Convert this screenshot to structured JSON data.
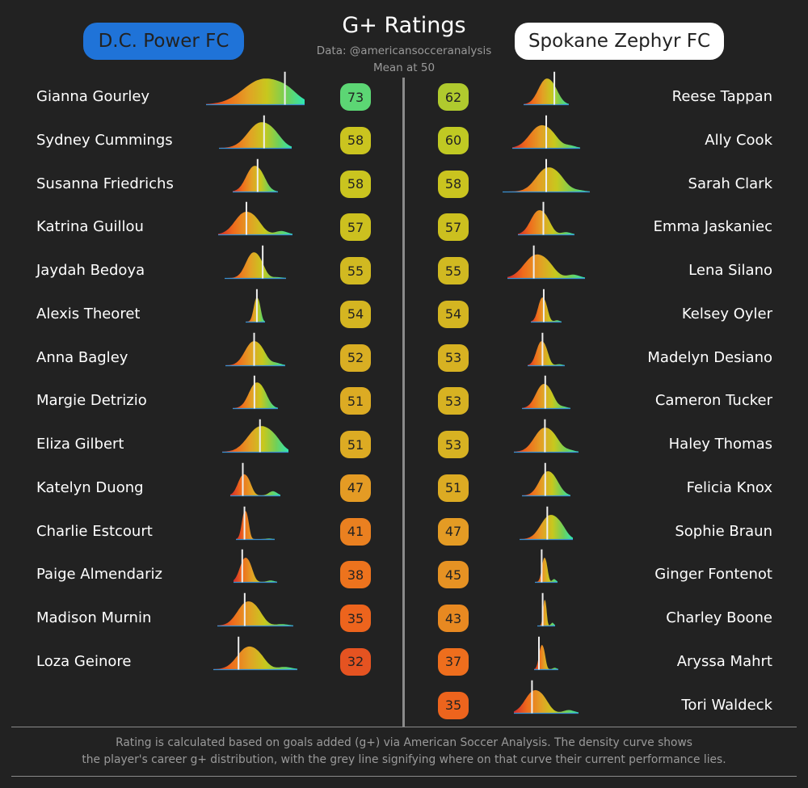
{
  "header": {
    "title": "G+ Ratings",
    "subtitle_line1": "Data: @americansocceranalysis",
    "subtitle_line2": "Mean at 50"
  },
  "teams": {
    "left": {
      "name": "D.C. Power FC",
      "badge_color": "#1f73d8",
      "text_color": "#222222"
    },
    "right": {
      "name": "Spokane Zephyr FC",
      "badge_color": "#ffffff",
      "text_color": "#222222"
    }
  },
  "footnote": {
    "line1": "Rating is calculated based on goals added (g+) via American Soccer Analysis. The density curve shows",
    "line2": "the player's career g+ distribution, with the grey line signifying where on that curve their current performance lies."
  },
  "colors": {
    "background": "#222222",
    "text": "#ffffff",
    "muted": "#9a9a9a",
    "divider": "#8a8a8a",
    "gradient": [
      "#d42a2a",
      "#ef6a1c",
      "#e3a025",
      "#c7c81e",
      "#6fd05a",
      "#2ee6b4"
    ]
  },
  "chart_data": {
    "type": "table",
    "title": "G+ Ratings",
    "columns": [
      "player",
      "rating"
    ],
    "series": [
      {
        "name": "D.C. Power FC",
        "players": [
          {
            "player": "Gianna Gourley",
            "rating": 73
          },
          {
            "player": "Sydney Cummings",
            "rating": 58
          },
          {
            "player": "Susanna Friedrichs",
            "rating": 58
          },
          {
            "player": "Katrina Guillou",
            "rating": 57
          },
          {
            "player": "Jaydah Bedoya",
            "rating": 55
          },
          {
            "player": "Alexis Theoret",
            "rating": 54
          },
          {
            "player": "Anna Bagley",
            "rating": 52
          },
          {
            "player": "Margie Detrizio",
            "rating": 51
          },
          {
            "player": "Eliza Gilbert",
            "rating": 51
          },
          {
            "player": "Katelyn Duong",
            "rating": 47
          },
          {
            "player": "Charlie Estcourt",
            "rating": 41
          },
          {
            "player": "Paige Almendariz",
            "rating": 38
          },
          {
            "player": "Madison Murnin",
            "rating": 35
          },
          {
            "player": "Loza Geinore",
            "rating": 32
          }
        ]
      },
      {
        "name": "Spokane Zephyr FC",
        "players": [
          {
            "player": "Reese Tappan",
            "rating": 62
          },
          {
            "player": "Ally Cook",
            "rating": 60
          },
          {
            "player": "Sarah Clark",
            "rating": 58
          },
          {
            "player": "Emma Jaskaniec",
            "rating": 57
          },
          {
            "player": "Lena Silano",
            "rating": 55
          },
          {
            "player": "Kelsey Oyler",
            "rating": 54
          },
          {
            "player": "Madelyn Desiano",
            "rating": 53
          },
          {
            "player": "Cameron Tucker",
            "rating": 53
          },
          {
            "player": "Haley Thomas",
            "rating": 53
          },
          {
            "player": "Felicia Knox",
            "rating": 51
          },
          {
            "player": "Sophie Braun",
            "rating": 47
          },
          {
            "player": "Ginger Fontenot",
            "rating": 45
          },
          {
            "player": "Charley Boone",
            "rating": 43
          },
          {
            "player": "Aryssa Mahrt",
            "rating": 37
          },
          {
            "player": "Tori Waldeck",
            "rating": 35
          }
        ]
      }
    ]
  }
}
